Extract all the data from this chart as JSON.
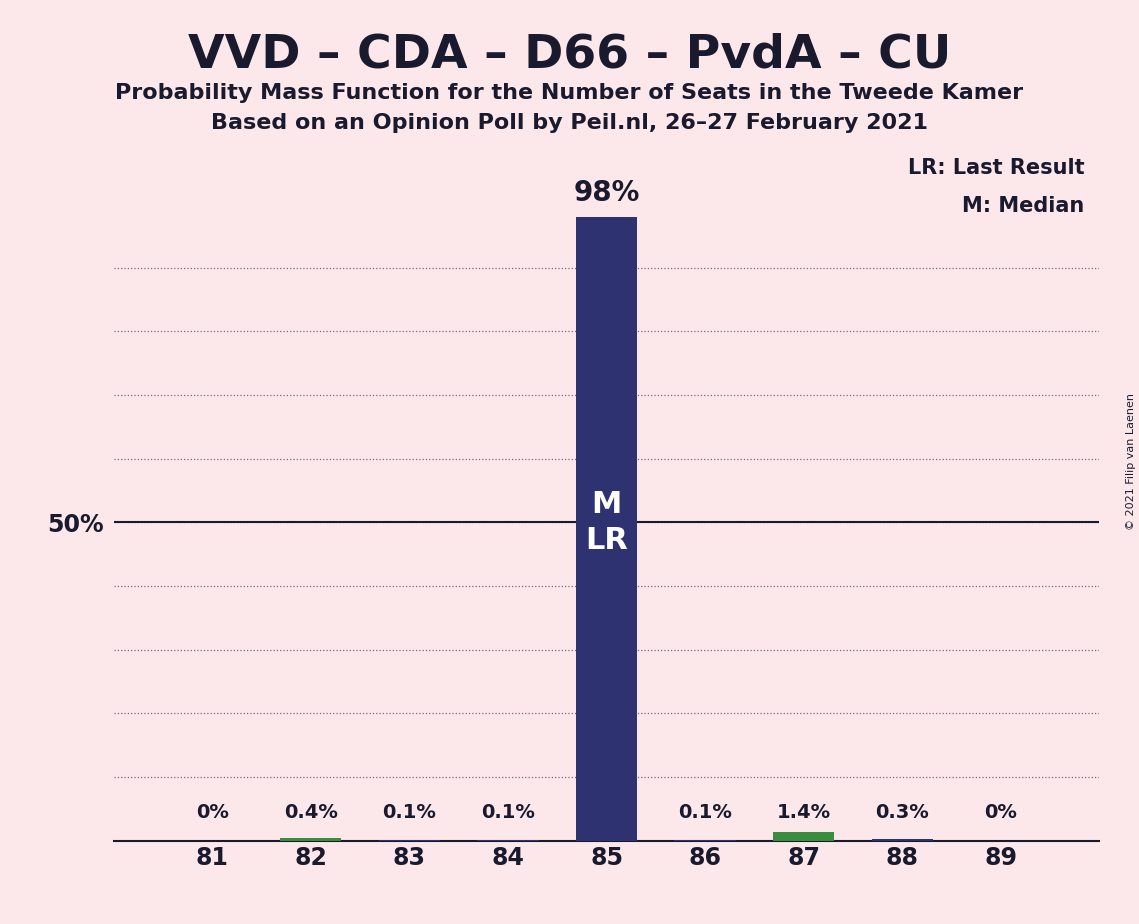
{
  "title": "VVD – CDA – D66 – PvdA – CU",
  "subtitle1": "Probability Mass Function for the Number of Seats in the Tweede Kamer",
  "subtitle2": "Based on an Opinion Poll by Peil.nl, 26–27 February 2021",
  "copyright": "© 2021 Filip van Laenen",
  "seats": [
    81,
    82,
    83,
    84,
    85,
    86,
    87,
    88,
    89
  ],
  "probabilities": [
    0.0,
    0.4,
    0.1,
    0.1,
    98.0,
    0.1,
    1.4,
    0.3,
    0.0
  ],
  "bar_color_main": "#2e3270",
  "bar_color_highlight": "#3a8c3f",
  "highlight_seats": [
    82,
    87
  ],
  "median_seat": 85,
  "last_result_seat": 85,
  "bar_labels": [
    "0%",
    "0.4%",
    "0.1%",
    "0.1%",
    "98%",
    "0.1%",
    "1.4%",
    "0.3%",
    "0%"
  ],
  "background_color": "#fce8ea",
  "ylabel_50": "50%",
  "ylim": [
    0,
    110
  ],
  "legend_lr": "LR: Last Result",
  "legend_m": "M: Median",
  "grid_color": "#1a1a2e",
  "text_color": "#1a1a2e",
  "figsize": [
    11.39,
    9.24
  ],
  "dpi": 100
}
